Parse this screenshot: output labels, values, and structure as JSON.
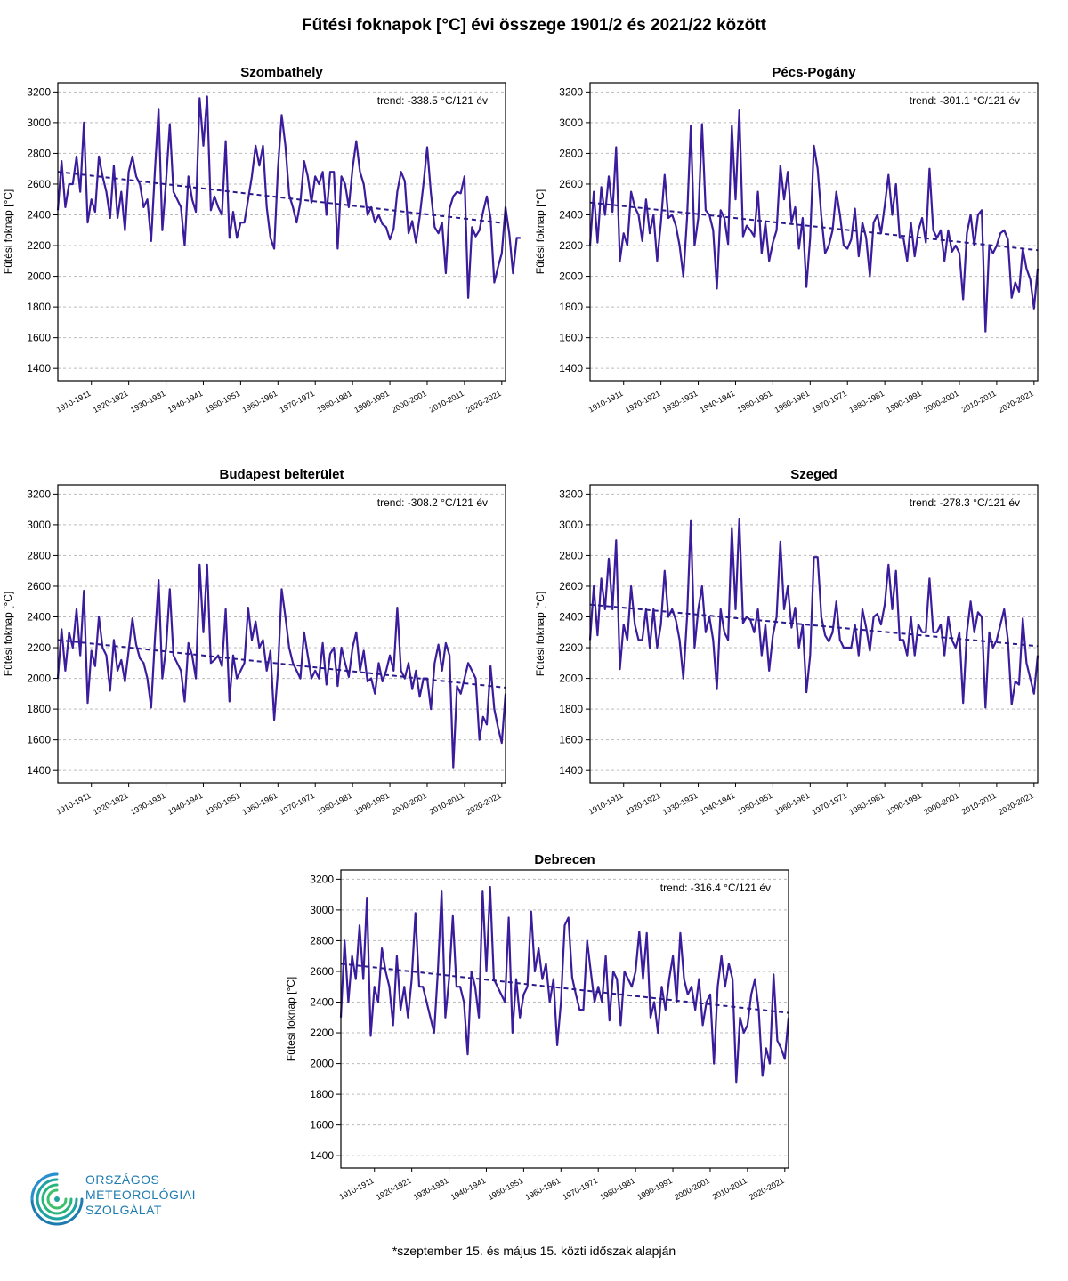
{
  "title": "Fűtési foknapok [°C] évi összege 1901/2 és 2021/22 között",
  "footnote": "*szeptember 15. és május 15. közti időszak alapján",
  "logo": {
    "line1": "ORSZÁGOS",
    "line2": "METEOROLÓGIAI",
    "line3": "SZOLGÁLAT",
    "color": "#1e7bb0"
  },
  "colors": {
    "series": "#3b1c9c",
    "trend": "#2a1a8c",
    "grid": "#bbbbbb"
  },
  "chart_data": [
    {
      "type": "line",
      "title": "Szombathely",
      "ylabel": "Fűtési foknap [°C]",
      "trend_label": "trend: -338.5 °C/121 év",
      "ylim": [
        1320,
        3260
      ],
      "yticks": [
        1400,
        1600,
        1800,
        2000,
        2200,
        2400,
        2600,
        2800,
        3000,
        3200
      ],
      "xlim": [
        1901,
        2021
      ],
      "xticks": [
        "1910-1911",
        "1920-1921",
        "1930-1931",
        "1940-1941",
        "1950-1951",
        "1960-1961",
        "1970-1971",
        "1980-1981",
        "1990-1991",
        "2000-2001",
        "2010-2011",
        "2020-2021"
      ],
      "trend": {
        "start": 2680,
        "end": 2345
      },
      "values": [
        2430,
        2750,
        2450,
        2600,
        2600,
        2780,
        2550,
        3000,
        2350,
        2500,
        2420,
        2780,
        2650,
        2550,
        2380,
        2720,
        2380,
        2550,
        2300,
        2680,
        2780,
        2650,
        2600,
        2450,
        2500,
        2230,
        2680,
        3090,
        2300,
        2620,
        2990,
        2550,
        2500,
        2450,
        2200,
        2650,
        2500,
        2420,
        3160,
        2850,
        3170,
        2430,
        2520,
        2450,
        2400,
        2880,
        2250,
        2420,
        2250,
        2350,
        2350,
        2500,
        2650,
        2850,
        2720,
        2850,
        2450,
        2250,
        2180,
        2700,
        3050,
        2850,
        2530,
        2450,
        2350,
        2480,
        2750,
        2650,
        2480,
        2650,
        2600,
        2680,
        2400,
        2680,
        2680,
        2180,
        2650,
        2600,
        2450,
        2700,
        2880,
        2680,
        2600,
        2400,
        2450,
        2350,
        2400,
        2340,
        2320,
        2240,
        2310,
        2550,
        2680,
        2620,
        2280,
        2360,
        2220,
        2390,
        2600,
        2840,
        2540,
        2320,
        2280,
        2350,
        2020,
        2440,
        2520,
        2550,
        2540,
        2650,
        1860,
        2320,
        2260,
        2300,
        2420,
        2520,
        2380,
        1960,
        2060,
        2150,
        2450,
        2280,
        2020,
        2250,
        2250
      ]
    },
    {
      "type": "line",
      "title": "Pécs-Pogány",
      "ylabel": "Fűtési foknap [°C]",
      "trend_label": "trend: -301.1 °C/121 év",
      "ylim": [
        1320,
        3260
      ],
      "yticks": [
        1400,
        1600,
        1800,
        2000,
        2200,
        2400,
        2600,
        2800,
        3000,
        3200
      ],
      "xlim": [
        1901,
        2021
      ],
      "xticks": [
        "1910-1911",
        "1920-1921",
        "1930-1931",
        "1940-1941",
        "1950-1951",
        "1960-1961",
        "1970-1971",
        "1980-1981",
        "1990-1991",
        "2000-2001",
        "2010-2011",
        "2020-2021"
      ],
      "trend": {
        "start": 2480,
        "end": 2170
      },
      "values": [
        2200,
        2550,
        2220,
        2580,
        2400,
        2650,
        2420,
        2840,
        2100,
        2280,
        2200,
        2550,
        2450,
        2400,
        2230,
        2500,
        2280,
        2400,
        2100,
        2350,
        2660,
        2380,
        2400,
        2330,
        2200,
        2000,
        2380,
        2980,
        2200,
        2380,
        2990,
        2430,
        2400,
        2300,
        1920,
        2430,
        2380,
        2210,
        2980,
        2500,
        3080,
        2260,
        2330,
        2300,
        2260,
        2550,
        2150,
        2350,
        2100,
        2220,
        2300,
        2720,
        2500,
        2680,
        2350,
        2450,
        2180,
        2380,
        1930,
        2250,
        2850,
        2700,
        2390,
        2150,
        2200,
        2300,
        2550,
        2400,
        2200,
        2180,
        2240,
        2440,
        2130,
        2350,
        2250,
        2000,
        2350,
        2400,
        2280,
        2460,
        2660,
        2400,
        2600,
        2250,
        2250,
        2100,
        2350,
        2130,
        2300,
        2380,
        2220,
        2700,
        2300,
        2250,
        2300,
        2100,
        2300,
        2160,
        2200,
        2150,
        1850,
        2280,
        2400,
        2200,
        2400,
        2430,
        1640,
        2200,
        2150,
        2200,
        2280,
        2300,
        2240,
        1860,
        1960,
        1900,
        2180,
        2050,
        1980,
        1790,
        2050
      ]
    },
    {
      "type": "line",
      "title": "Budapest belterület",
      "ylabel": "Fűtési foknap [°C]",
      "trend_label": "trend: -308.2 °C/121 év",
      "ylim": [
        1320,
        3260
      ],
      "yticks": [
        1400,
        1600,
        1800,
        2000,
        2200,
        2400,
        2600,
        2800,
        3000,
        3200
      ],
      "xlim": [
        1901,
        2021
      ],
      "xticks": [
        "1910-1911",
        "1920-1921",
        "1930-1931",
        "1940-1941",
        "1950-1951",
        "1960-1961",
        "1970-1971",
        "1980-1981",
        "1990-1991",
        "2000-2001",
        "2010-2011",
        "2020-2021"
      ],
      "trend": {
        "start": 2250,
        "end": 1940
      },
      "values": [
        2000,
        2320,
        2050,
        2300,
        2200,
        2450,
        2150,
        2570,
        1840,
        2180,
        2080,
        2400,
        2200,
        2150,
        1920,
        2250,
        2050,
        2120,
        1980,
        2180,
        2390,
        2220,
        2130,
        2100,
        2000,
        1810,
        2250,
        2640,
        2000,
        2200,
        2580,
        2150,
        2100,
        2050,
        1850,
        2230,
        2150,
        2000,
        2740,
        2300,
        2740,
        2100,
        2120,
        2150,
        2080,
        2450,
        1850,
        2150,
        2000,
        2050,
        2100,
        2460,
        2250,
        2370,
        2200,
        2250,
        2050,
        2180,
        1730,
        2050,
        2580,
        2400,
        2200,
        2100,
        2050,
        2000,
        2300,
        2150,
        2000,
        2050,
        2000,
        2230,
        1960,
        2160,
        2200,
        1950,
        2200,
        2100,
        2010,
        2200,
        2300,
        2050,
        2180,
        1980,
        2000,
        1900,
        2100,
        1980,
        2050,
        2150,
        2050,
        2460,
        2050,
        2000,
        2100,
        1930,
        2050,
        1880,
        2000,
        2000,
        1800,
        2100,
        2220,
        2050,
        2230,
        2150,
        1420,
        1950,
        1900,
        2000,
        2100,
        2050,
        2000,
        1600,
        1750,
        1700,
        2080,
        1800,
        1680,
        1580,
        1900
      ]
    },
    {
      "type": "line",
      "title": "Szeged",
      "ylabel": "Fűtési foknap [°C]",
      "trend_label": "trend: -278.3 °C/121 év",
      "ylim": [
        1320,
        3260
      ],
      "yticks": [
        1400,
        1600,
        1800,
        2000,
        2200,
        2400,
        2600,
        2800,
        3000,
        3200
      ],
      "xlim": [
        1901,
        2021
      ],
      "xticks": [
        "1910-1911",
        "1920-1921",
        "1930-1931",
        "1940-1941",
        "1950-1951",
        "1960-1961",
        "1970-1971",
        "1980-1981",
        "1990-1991",
        "2000-2001",
        "2010-2011",
        "2020-2021"
      ],
      "trend": {
        "start": 2480,
        "end": 2210
      },
      "values": [
        2250,
        2600,
        2280,
        2650,
        2450,
        2780,
        2450,
        2900,
        2060,
        2350,
        2250,
        2600,
        2350,
        2250,
        2250,
        2450,
        2200,
        2450,
        2200,
        2350,
        2700,
        2400,
        2450,
        2380,
        2250,
        2000,
        2400,
        3030,
        2200,
        2450,
        2600,
        2300,
        2400,
        2250,
        1930,
        2450,
        2300,
        2250,
        2980,
        2450,
        3040,
        2360,
        2400,
        2380,
        2300,
        2450,
        2150,
        2350,
        2050,
        2280,
        2400,
        2890,
        2450,
        2600,
        2330,
        2460,
        2200,
        2350,
        1910,
        2150,
        2790,
        2790,
        2400,
        2280,
        2240,
        2300,
        2500,
        2250,
        2200,
        2200,
        2200,
        2350,
        2150,
        2450,
        2330,
        2180,
        2400,
        2420,
        2350,
        2480,
        2740,
        2450,
        2700,
        2250,
        2250,
        2150,
        2400,
        2150,
        2350,
        2300,
        2300,
        2650,
        2300,
        2300,
        2350,
        2150,
        2400,
        2250,
        2200,
        2300,
        1840,
        2300,
        2500,
        2300,
        2430,
        2400,
        1810,
        2300,
        2200,
        2250,
        2350,
        2450,
        2250,
        1830,
        1980,
        1960,
        2390,
        2100,
        2000,
        1900,
        2150
      ]
    },
    {
      "type": "line",
      "title": "Debrecen",
      "ylabel": "Fűtési foknap [°C]",
      "trend_label": "trend: -316.4 °C/121 év",
      "ylim": [
        1320,
        3260
      ],
      "yticks": [
        1400,
        1600,
        1800,
        2000,
        2200,
        2400,
        2600,
        2800,
        3000,
        3200
      ],
      "xlim": [
        1901,
        2021
      ],
      "xticks": [
        "1910-1911",
        "1920-1921",
        "1930-1931",
        "1940-1941",
        "1950-1951",
        "1960-1961",
        "1970-1971",
        "1980-1981",
        "1990-1991",
        "2000-2001",
        "2010-2011",
        "2020-2021"
      ],
      "trend": {
        "start": 2650,
        "end": 2330
      },
      "values": [
        2300,
        2800,
        2400,
        2700,
        2550,
        2900,
        2550,
        3080,
        2180,
        2500,
        2400,
        2750,
        2600,
        2500,
        2250,
        2700,
        2350,
        2500,
        2300,
        2550,
        2980,
        2500,
        2500,
        2400,
        2300,
        2200,
        2600,
        3120,
        2300,
        2550,
        2960,
        2500,
        2500,
        2400,
        2060,
        2600,
        2500,
        2300,
        3120,
        2600,
        3150,
        2550,
        2500,
        2450,
        2400,
        2950,
        2200,
        2550,
        2300,
        2450,
        2500,
        2990,
        2600,
        2750,
        2550,
        2650,
        2400,
        2550,
        2120,
        2400,
        2900,
        2950,
        2560,
        2450,
        2350,
        2350,
        2800,
        2600,
        2400,
        2500,
        2400,
        2700,
        2280,
        2600,
        2550,
        2250,
        2600,
        2550,
        2500,
        2600,
        2860,
        2550,
        2850,
        2300,
        2400,
        2200,
        2500,
        2350,
        2550,
        2700,
        2400,
        2850,
        2550,
        2450,
        2500,
        2350,
        2550,
        2250,
        2400,
        2450,
        2000,
        2500,
        2700,
        2500,
        2650,
        2550,
        1880,
        2300,
        2200,
        2250,
        2450,
        2550,
        2350,
        1920,
        2100,
        2000,
        2580,
        2150,
        2100,
        2030,
        2300
      ]
    }
  ]
}
